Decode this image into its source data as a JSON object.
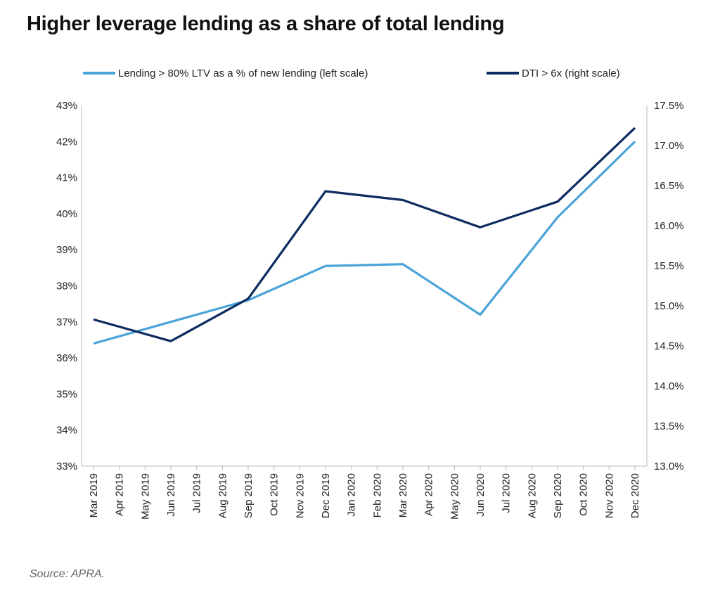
{
  "chart_data": {
    "type": "line",
    "title": "Higher leverage lending as a share of total lending",
    "source": "Source: APRA.",
    "categories": [
      "Mar 2019",
      "Apr 2019",
      "May 2019",
      "Jun 2019",
      "Jul 2019",
      "Aug 2019",
      "Sep 2019",
      "Oct 2019",
      "Nov 2019",
      "Dec 2019",
      "Jan 2020",
      "Feb 2020",
      "Mar 2020",
      "Apr 2020",
      "May 2020",
      "Jun 2020",
      "Jul 2020",
      "Aug 2020",
      "Sep 2020",
      "Oct 2020",
      "Nov 2020",
      "Dec 2020"
    ],
    "left_axis": {
      "ylim": [
        33,
        43
      ],
      "ticks": [
        "33%",
        "34%",
        "35%",
        "36%",
        "37%",
        "38%",
        "39%",
        "40%",
        "41%",
        "42%",
        "43%"
      ]
    },
    "right_axis": {
      "ylim": [
        13.0,
        17.5
      ],
      "ticks": [
        "13.0%",
        "13.5%",
        "14.0%",
        "14.5%",
        "15.0%",
        "15.5%",
        "16.0%",
        "16.5%",
        "17.0%",
        "17.5%"
      ]
    },
    "series": [
      {
        "name": "Lending > 80% LTV as a % of new lending (left scale)",
        "axis": "left",
        "color": "#4aa3d9",
        "points": [
          [
            "Mar 2019",
            36.4
          ],
          [
            "Sep 2019",
            37.6
          ],
          [
            "Dec 2019",
            38.55
          ],
          [
            "Mar 2020",
            38.6
          ],
          [
            "Jun 2020",
            37.2
          ],
          [
            "Sep 2020",
            39.9
          ],
          [
            "Dec 2020",
            42.0
          ]
        ]
      },
      {
        "name": "DTI > 6x (right scale)",
        "axis": "right",
        "color": "#0c2b5f",
        "points": [
          [
            "Mar 2019",
            14.83
          ],
          [
            "Jun 2019",
            14.56
          ],
          [
            "Sep 2019",
            15.09
          ],
          [
            "Dec 2019",
            16.43
          ],
          [
            "Mar 2020",
            16.32
          ],
          [
            "Jun 2020",
            15.98
          ],
          [
            "Sep 2020",
            16.3
          ],
          [
            "Dec 2020",
            17.22
          ]
        ]
      }
    ],
    "legend_position": "top",
    "grid": false
  }
}
